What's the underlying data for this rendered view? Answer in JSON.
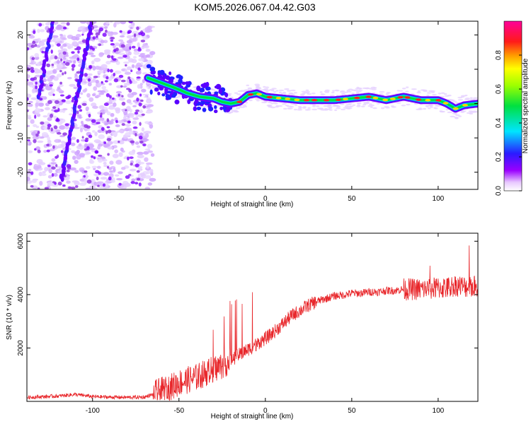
{
  "title": "KOM5.2026.067.04.42.G03",
  "chart_data": [
    {
      "type": "heatmap",
      "xlabel": "Height of straight line (km)",
      "ylabel": "Frequency (Hz)",
      "xlim": [
        -138,
        123
      ],
      "ylim": [
        -25,
        24
      ],
      "xticks": [
        "-100",
        "-50",
        "0",
        "50",
        "100"
      ],
      "xtick_values": [
        -100,
        -50,
        0,
        50,
        100
      ],
      "yticks": [
        "-20",
        "-10",
        "0",
        "10",
        "20"
      ],
      "ytick_values": [
        -20,
        -10,
        0,
        10,
        20
      ],
      "colorbar": {
        "label": "Normalized spectral amplitude",
        "range": [
          0,
          1
        ],
        "ticks": [
          "0.0",
          "0.2",
          "0.4",
          "0.6",
          "0.8"
        ],
        "tick_values": [
          0.0,
          0.2,
          0.4,
          0.6,
          0.8
        ]
      },
      "ridge": {
        "x": [
          -68,
          -60,
          -52,
          -45,
          -38,
          -30,
          -25,
          -20,
          -15,
          -10,
          -5,
          0,
          10,
          20,
          30,
          40,
          50,
          60,
          70,
          80,
          90,
          100,
          105,
          110,
          115,
          123
        ],
        "y": [
          7.5,
          6.0,
          4.5,
          3.0,
          2.0,
          1.5,
          0.5,
          0.0,
          0.5,
          2.5,
          3.0,
          2.0,
          1.5,
          1.0,
          1.0,
          1.0,
          1.5,
          2.0,
          1.0,
          2.0,
          1.0,
          1.0,
          0.0,
          -1.5,
          -0.5,
          0.0
        ]
      }
    },
    {
      "type": "line",
      "xlabel": "Height of straight line (km)",
      "ylabel": "SNR (10 * v/v)",
      "xlim": [
        -138,
        123
      ],
      "ylim": [
        0,
        6300
      ],
      "xticks": [
        "-100",
        "-50",
        "0",
        "50",
        "100"
      ],
      "xtick_values": [
        -100,
        -50,
        0,
        50,
        100
      ],
      "yticks": [
        "2000",
        "4000",
        "6000"
      ],
      "ytick_values": [
        2000,
        4000,
        6000
      ],
      "series": [
        {
          "name": "SNR",
          "color": "#e8262a",
          "x": [
            -138,
            -120,
            -110,
            -100,
            -90,
            -80,
            -70,
            -65,
            -60,
            -55,
            -50,
            -45,
            -40,
            -35,
            -30,
            -25,
            -20,
            -15,
            -10,
            -5,
            0,
            5,
            10,
            15,
            20,
            25,
            30,
            35,
            40,
            45,
            50,
            55,
            60,
            65,
            70,
            75,
            80,
            85,
            90,
            95,
            100,
            105,
            110,
            115,
            120,
            123
          ],
          "values": [
            150,
            200,
            260,
            180,
            160,
            150,
            160,
            260,
            400,
            520,
            700,
            800,
            900,
            1050,
            1200,
            1350,
            1550,
            1750,
            1950,
            2150,
            2350,
            2600,
            2900,
            3200,
            3400,
            3600,
            3750,
            3850,
            3950,
            3980,
            4050,
            4050,
            4100,
            4100,
            4150,
            4150,
            4200,
            4200,
            4200,
            4220,
            4250,
            4250,
            4350,
            4300,
            4300,
            4300
          ]
        }
      ]
    }
  ],
  "colors": {
    "line": "#e8262a",
    "frame": "#000000",
    "heat_background": "#ffffff"
  }
}
